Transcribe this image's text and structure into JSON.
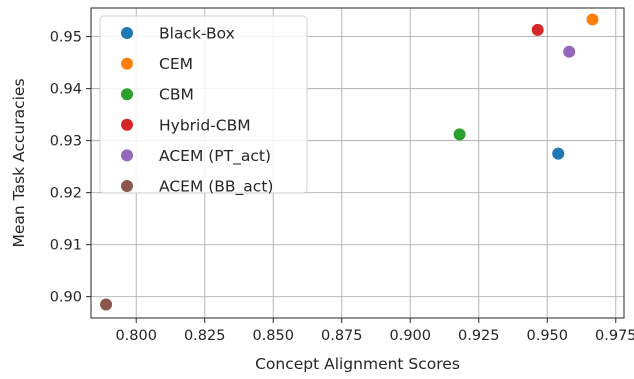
{
  "chart_data": {
    "type": "scatter",
    "title": "",
    "xlabel": "Concept Alignment Scores",
    "ylabel": "Mean Task Accuracies",
    "xlim": [
      0.7835,
      0.978
    ],
    "ylim": [
      0.8959,
      0.9555
    ],
    "xticks": [
      0.8,
      0.825,
      0.85,
      0.875,
      0.9,
      0.925,
      0.95,
      0.975
    ],
    "xtick_labels": [
      "0.800",
      "0.825",
      "0.850",
      "0.875",
      "0.900",
      "0.925",
      "0.950",
      "0.975"
    ],
    "yticks": [
      0.9,
      0.91,
      0.92,
      0.93,
      0.94,
      0.95
    ],
    "ytick_labels": [
      "0.90",
      "0.91",
      "0.92",
      "0.93",
      "0.94",
      "0.95"
    ],
    "grid": true,
    "legend_position": "top-left",
    "series": [
      {
        "name": "Black-Box",
        "color": "#1f77b4",
        "points": [
          {
            "x": 0.954,
            "y": 0.9275
          }
        ]
      },
      {
        "name": "CEM",
        "color": "#ff7f0e",
        "points": [
          {
            "x": 0.9665,
            "y": 0.9533
          }
        ]
      },
      {
        "name": "CBM",
        "color": "#2ca02c",
        "points": [
          {
            "x": 0.918,
            "y": 0.9312
          }
        ]
      },
      {
        "name": "Hybrid-CBM",
        "color": "#d62728",
        "points": [
          {
            "x": 0.9465,
            "y": 0.9513
          }
        ]
      },
      {
        "name": "ACEM (PT_act)",
        "color": "#9467bd",
        "points": [
          {
            "x": 0.958,
            "y": 0.9471
          }
        ]
      },
      {
        "name": "ACEM (BB_act)",
        "color": "#8c564b",
        "points": [
          {
            "x": 0.789,
            "y": 0.8985
          }
        ]
      }
    ]
  }
}
